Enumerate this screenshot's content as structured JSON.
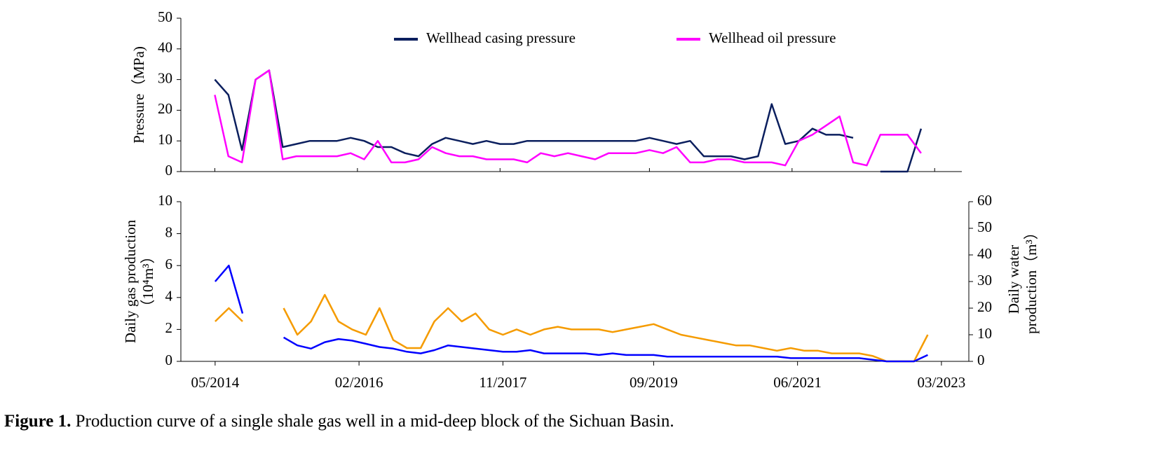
{
  "chart_data": [
    {
      "type": "line",
      "ylabel": "Pressure（MPa)",
      "legend": "upper center",
      "xlim": [
        "2013-12",
        "2023-07"
      ],
      "ylim": [
        0,
        50
      ],
      "yticks": [
        0,
        10,
        20,
        30,
        40,
        50
      ],
      "x": [
        "2014-05",
        "2014-07",
        "2014-09",
        "2014-11",
        "2015-01",
        "2015-03",
        "2015-05",
        "2015-07",
        "2015-09",
        "2015-11",
        "2016-01",
        "2016-03",
        "2016-05",
        "2016-07",
        "2016-09",
        "2016-11",
        "2017-01",
        "2017-03",
        "2017-05",
        "2017-07",
        "2017-09",
        "2017-11",
        "2018-01",
        "2018-03",
        "2018-05",
        "2018-07",
        "2018-09",
        "2018-11",
        "2019-01",
        "2019-03",
        "2019-05",
        "2019-07",
        "2019-09",
        "2019-11",
        "2020-01",
        "2020-03",
        "2020-05",
        "2020-07",
        "2020-09",
        "2020-11",
        "2021-01",
        "2021-03",
        "2021-05",
        "2021-07",
        "2021-09",
        "2021-11",
        "2022-01",
        "2022-03",
        "2022-05",
        "2022-07",
        "2022-09",
        "2022-11",
        "2023-01",
        "2023-03"
      ],
      "series": [
        {
          "name": "Wellhead casing pressure",
          "color": "#0b1f5e",
          "values": [
            30,
            25,
            7,
            30,
            33,
            8,
            9,
            10,
            10,
            10,
            11,
            10,
            8,
            8,
            6,
            5,
            9,
            11,
            10,
            9,
            10,
            9,
            9,
            10,
            10,
            10,
            10,
            10,
            10,
            10,
            10,
            10,
            11,
            10,
            9,
            10,
            5,
            5,
            5,
            4,
            5,
            22,
            9,
            10,
            14,
            12,
            12,
            11,
            null,
            0,
            0,
            0,
            14,
            null
          ]
        },
        {
          "name": "Wellhead oil pressure",
          "color": "#ff00ff",
          "values": [
            25,
            5,
            3,
            30,
            33,
            4,
            5,
            5,
            5,
            5,
            6,
            4,
            10,
            3,
            3,
            4,
            8,
            6,
            5,
            5,
            4,
            4,
            4,
            3,
            6,
            5,
            6,
            5,
            4,
            6,
            6,
            6,
            7,
            6,
            8,
            3,
            3,
            4,
            4,
            3,
            3,
            3,
            2,
            10,
            12,
            15,
            18,
            3,
            2,
            12,
            12,
            12,
            6,
            null
          ]
        }
      ]
    },
    {
      "type": "line",
      "ylabel": [
        "Daily gas production",
        "（10⁴m³）"
      ],
      "y2label": [
        "Daily water",
        "production（m³）"
      ],
      "xlim": [
        "2013-12",
        "2023-07"
      ],
      "xticks": [
        {
          "value": "2014-05",
          "label": "05/2014"
        },
        {
          "value": "2016-02",
          "label": "02/2016"
        },
        {
          "value": "2017-11",
          "label": "11/2017"
        },
        {
          "value": "2019-09",
          "label": "09/2019"
        },
        {
          "value": "2021-06",
          "label": "06/2021"
        },
        {
          "value": "2023-03",
          "label": "03/2023"
        }
      ],
      "ylim": [
        0,
        10
      ],
      "yticks": [
        0,
        2,
        4,
        6,
        8,
        10
      ],
      "y2lim": [
        0,
        60
      ],
      "y2ticks": [
        0,
        10,
        20,
        30,
        40,
        50,
        60
      ],
      "x": [
        "2014-05",
        "2014-07",
        "2014-09",
        "2014-11",
        "2015-01",
        "2015-03",
        "2015-05",
        "2015-07",
        "2015-09",
        "2015-11",
        "2016-01",
        "2016-03",
        "2016-05",
        "2016-07",
        "2016-09",
        "2016-11",
        "2017-01",
        "2017-03",
        "2017-05",
        "2017-07",
        "2017-09",
        "2017-11",
        "2018-01",
        "2018-03",
        "2018-05",
        "2018-07",
        "2018-09",
        "2018-11",
        "2019-01",
        "2019-03",
        "2019-05",
        "2019-07",
        "2019-09",
        "2019-11",
        "2020-01",
        "2020-03",
        "2020-05",
        "2020-07",
        "2020-09",
        "2020-11",
        "2021-01",
        "2021-03",
        "2021-05",
        "2021-07",
        "2021-09",
        "2021-11",
        "2022-01",
        "2022-03",
        "2022-05",
        "2022-07",
        "2022-09",
        "2022-11",
        "2023-01",
        "2023-03"
      ],
      "series": [
        {
          "color": "#f59b00",
          "axis": "y2",
          "values": [
            15,
            20,
            15,
            null,
            null,
            20,
            10,
            15,
            25,
            15,
            12,
            10,
            20,
            8,
            5,
            5,
            15,
            20,
            15,
            18,
            12,
            10,
            12,
            10,
            12,
            13,
            12,
            12,
            12,
            11,
            12,
            13,
            14,
            12,
            10,
            9,
            8,
            7,
            6,
            6,
            5,
            4,
            5,
            4,
            4,
            3,
            3,
            3,
            2,
            0,
            0,
            0,
            10,
            null
          ]
        },
        {
          "color": "#0000ff",
          "values": [
            5,
            6,
            3,
            null,
            null,
            1.5,
            1,
            0.8,
            1.2,
            1.4,
            1.3,
            1.1,
            0.9,
            0.8,
            0.6,
            0.5,
            0.7,
            1,
            0.9,
            0.8,
            0.7,
            0.6,
            0.6,
            0.7,
            0.5,
            0.5,
            0.5,
            0.5,
            0.4,
            0.5,
            0.4,
            0.4,
            0.4,
            0.3,
            0.3,
            0.3,
            0.3,
            0.3,
            0.3,
            0.3,
            0.3,
            0.3,
            0.2,
            0.2,
            0.2,
            0.2,
            0.2,
            0.2,
            0.1,
            0,
            0,
            0,
            0.4,
            null
          ]
        }
      ]
    }
  ],
  "caption": {
    "label": "Figure 1.",
    "text": "Production curve of a single shale gas well in a mid-deep block of the Sichuan Basin."
  }
}
